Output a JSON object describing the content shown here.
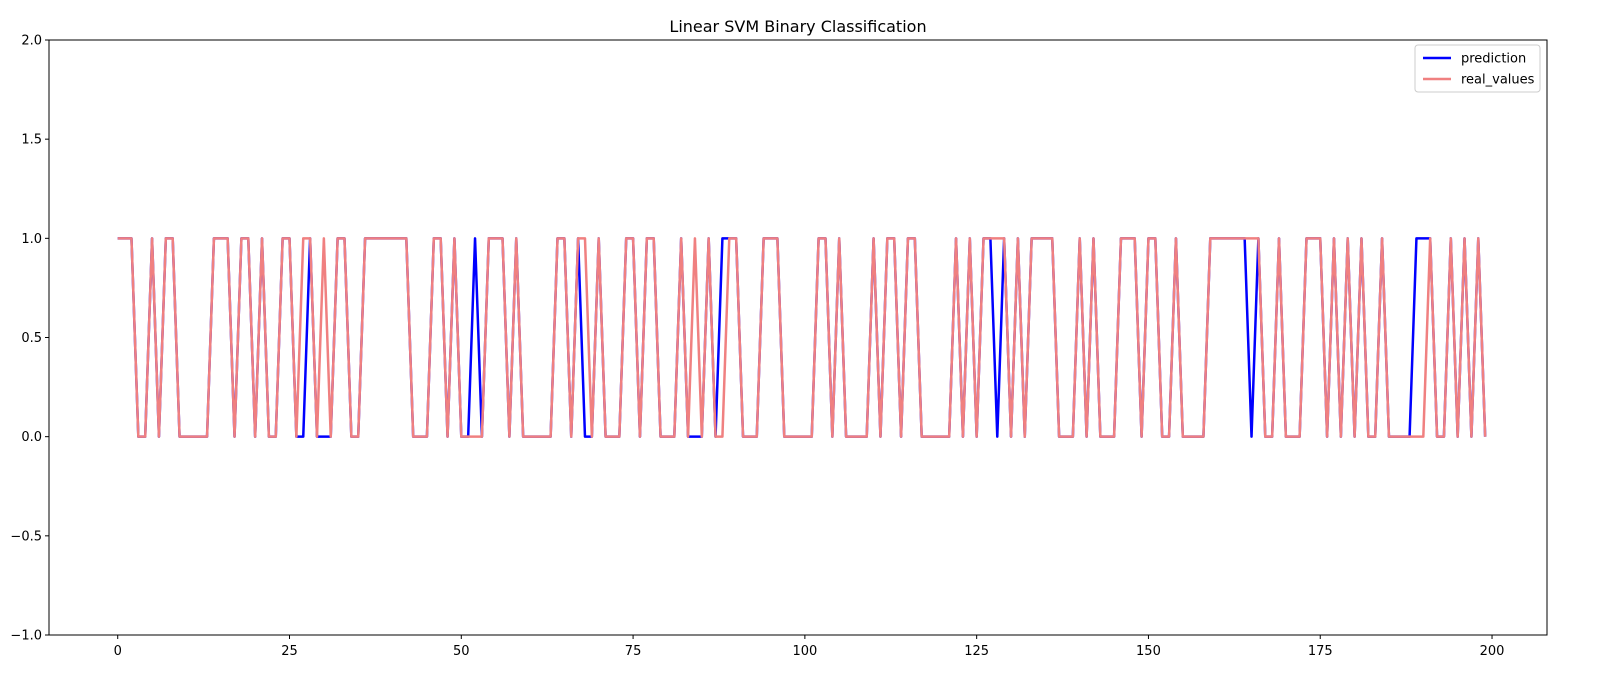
{
  "chart_data": {
    "type": "line",
    "title": "Linear SVM Binary Classification",
    "xlabel": "",
    "ylabel": "",
    "xlim": [
      -10,
      208
    ],
    "ylim": [
      -1.0,
      2.0
    ],
    "xticks": [
      0,
      25,
      50,
      75,
      100,
      125,
      150,
      175,
      200
    ],
    "yticks": [
      -1.0,
      -0.5,
      0.0,
      0.5,
      1.0,
      1.5,
      2.0
    ],
    "xtick_labels": [
      "0",
      "25",
      "50",
      "75",
      "100",
      "125",
      "150",
      "175",
      "200"
    ],
    "ytick_labels": [
      "−1.0",
      "−0.5",
      "0.0",
      "0.5",
      "1.0",
      "1.5",
      "2.0"
    ],
    "grid": false,
    "legend_position": "top-right",
    "series": [
      {
        "name": "prediction",
        "color": "#0000ff",
        "values": [
          1,
          1,
          1,
          0,
          0,
          1,
          0,
          1,
          1,
          0,
          0,
          0,
          0,
          0,
          1,
          1,
          1,
          0,
          1,
          1,
          0,
          1,
          0,
          0,
          1,
          1,
          0,
          0,
          1,
          0,
          0,
          0,
          1,
          1,
          0,
          0,
          1,
          1,
          1,
          1,
          1,
          1,
          1,
          0,
          0,
          0,
          1,
          1,
          0,
          1,
          0,
          0,
          1,
          0,
          1,
          1,
          1,
          0,
          1,
          0,
          0,
          0,
          0,
          0,
          1,
          1,
          0,
          1,
          0,
          0,
          1,
          0,
          0,
          0,
          1,
          1,
          0,
          1,
          1,
          0,
          0,
          0,
          1,
          0,
          0,
          0,
          1,
          0,
          1,
          1,
          1,
          0,
          0,
          0,
          1,
          1,
          1,
          0,
          0,
          0,
          0,
          0,
          1,
          1,
          0,
          1,
          0,
          0,
          0,
          0,
          1,
          0,
          1,
          1,
          0,
          1,
          1,
          0,
          0,
          0,
          0,
          0,
          1,
          0,
          1,
          0,
          1,
          1,
          0,
          1,
          0,
          1,
          0,
          1,
          1,
          1,
          1,
          0,
          0,
          0,
          1,
          0,
          1,
          0,
          0,
          0,
          1,
          1,
          1,
          0,
          1,
          1,
          0,
          0,
          1,
          0,
          0,
          0,
          0,
          1,
          1,
          1,
          1,
          1,
          1,
          0,
          1,
          0,
          0,
          1,
          0,
          0,
          0,
          1,
          1,
          1,
          0,
          1,
          0,
          1,
          0,
          1,
          0,
          0,
          1,
          0,
          0,
          0,
          0,
          1,
          1,
          1,
          0,
          0,
          1,
          0,
          1,
          0,
          1,
          0
        ]
      },
      {
        "name": "real_values",
        "color": "#f08080",
        "values": [
          1,
          1,
          1,
          0,
          0,
          1,
          0,
          1,
          1,
          0,
          0,
          0,
          0,
          0,
          1,
          1,
          1,
          0,
          1,
          1,
          0,
          1,
          0,
          0,
          1,
          1,
          0,
          1,
          1,
          0,
          1,
          0,
          1,
          1,
          0,
          0,
          1,
          1,
          1,
          1,
          1,
          1,
          1,
          0,
          0,
          0,
          1,
          1,
          0,
          1,
          0,
          0,
          0,
          0,
          1,
          1,
          1,
          0,
          1,
          0,
          0,
          0,
          0,
          0,
          1,
          1,
          0,
          1,
          1,
          0,
          1,
          0,
          0,
          0,
          1,
          1,
          0,
          1,
          1,
          0,
          0,
          0,
          1,
          0,
          1,
          0,
          1,
          0,
          0,
          1,
          1,
          0,
          0,
          0,
          1,
          1,
          1,
          0,
          0,
          0,
          0,
          0,
          1,
          1,
          0,
          1,
          0,
          0,
          0,
          0,
          1,
          0,
          1,
          1,
          0,
          1,
          1,
          0,
          0,
          0,
          0,
          0,
          1,
          0,
          1,
          0,
          1,
          1,
          1,
          1,
          0,
          1,
          0,
          1,
          1,
          1,
          1,
          0,
          0,
          0,
          1,
          0,
          1,
          0,
          0,
          0,
          1,
          1,
          1,
          0,
          1,
          1,
          0,
          0,
          1,
          0,
          0,
          0,
          0,
          1,
          1,
          1,
          1,
          1,
          1,
          1,
          1,
          0,
          0,
          1,
          0,
          0,
          0,
          1,
          1,
          1,
          0,
          1,
          0,
          1,
          0,
          1,
          0,
          0,
          1,
          0,
          0,
          0,
          0,
          0,
          0,
          1,
          0,
          0,
          1,
          0,
          1,
          0,
          1,
          0
        ]
      }
    ]
  }
}
